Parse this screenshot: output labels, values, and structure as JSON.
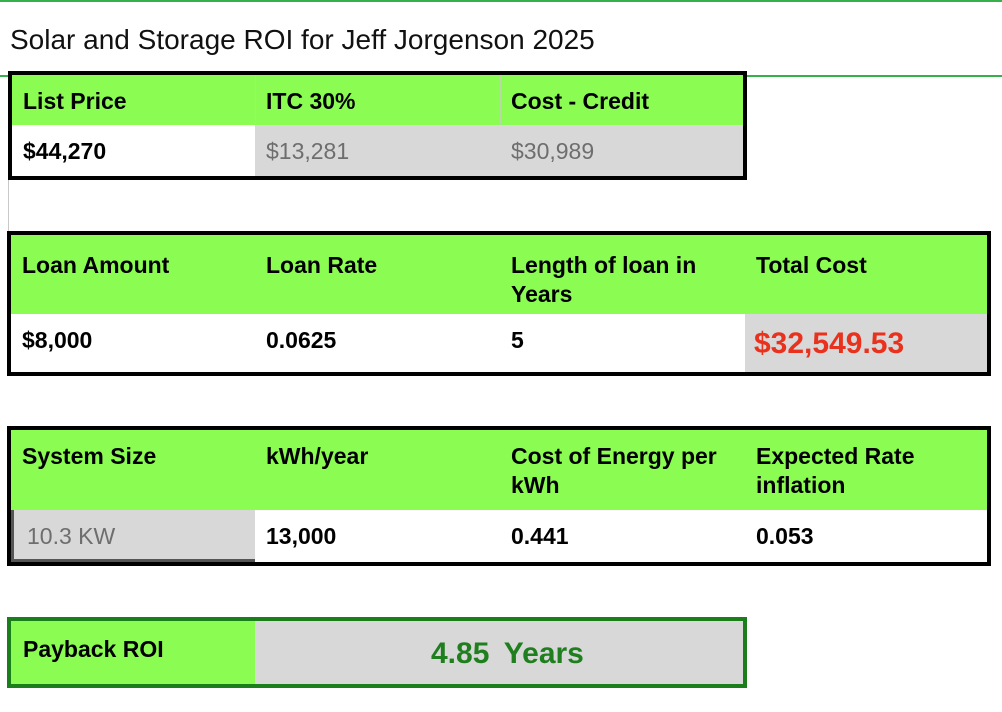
{
  "title": "Solar and Storage ROI for Jeff Jorgenson 2025",
  "colors": {
    "header_green": "#8afc52",
    "total_cost_red": "#e8321e",
    "roi_green": "#1f7f1f",
    "gray_cell": "#d8d8d8"
  },
  "price_table": {
    "headers": [
      "List Price",
      "ITC 30%",
      "Cost - Credit"
    ],
    "values": [
      "$44,270",
      "$13,281",
      "$30,989"
    ]
  },
  "loan_table": {
    "headers": [
      "Loan Amount",
      "Loan Rate",
      "Length of loan in Years",
      "Total Cost"
    ],
    "values": [
      "$8,000",
      "0.0625",
      "5",
      "$32,549.53"
    ]
  },
  "system_table": {
    "headers": [
      "System Size",
      "kWh/year",
      "Cost of Energy per kWh",
      "Expected Rate inflation"
    ],
    "values": [
      "10.3 KW",
      "13,000",
      "0.441",
      "0.053"
    ]
  },
  "payback": {
    "label": "Payback ROI",
    "value": "4.85",
    "unit": "Years"
  }
}
